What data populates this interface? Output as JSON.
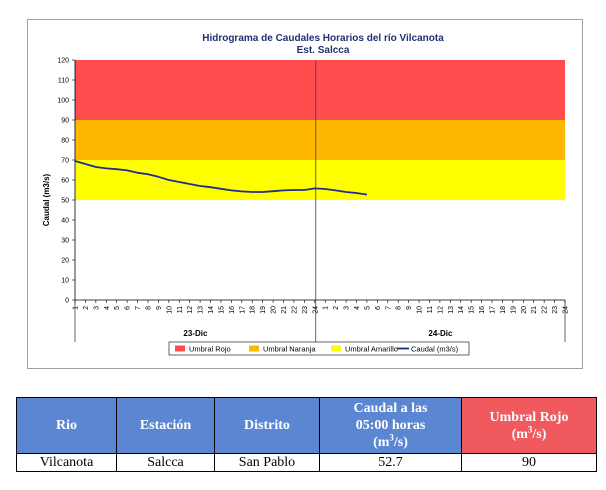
{
  "chart_data": {
    "type": "line",
    "title": "Hidrograma de Caudales Horarios del río Vilcanota",
    "subtitle": "Est. Salcca",
    "ylabel": "Caudal  (m3/s)",
    "ylim": [
      0,
      120
    ],
    "yticks": [
      0,
      10,
      20,
      30,
      40,
      50,
      60,
      70,
      80,
      90,
      100,
      110,
      120
    ],
    "x_tick_labels": [
      "1",
      "2",
      "3",
      "4",
      "5",
      "6",
      "7",
      "8",
      "9",
      "10",
      "11",
      "12",
      "13",
      "14",
      "15",
      "16",
      "17",
      "18",
      "19",
      "20",
      "21",
      "22",
      "23",
      "24",
      "1",
      "2",
      "3",
      "4",
      "5",
      "6",
      "7",
      "8",
      "9",
      "10",
      "11",
      "12",
      "13",
      "14",
      "15",
      "16",
      "17",
      "18",
      "19",
      "20",
      "21",
      "22",
      "23",
      "24"
    ],
    "day_labels": [
      "23-Dic",
      "24-Dic"
    ],
    "bands": [
      {
        "name": "Umbral Rojo",
        "from": 90,
        "to": 120,
        "color": "#FF4D4D"
      },
      {
        "name": "Umbral Naranja",
        "from": 70,
        "to": 90,
        "color": "#FFB800"
      },
      {
        "name": "Umbral Amarillo",
        "from": 50,
        "to": 70,
        "color": "#FFFF00"
      }
    ],
    "series": [
      {
        "name": "Caudal (m3/s)",
        "color": "#1F2C8F",
        "values": [
          69.5,
          68.0,
          66.5,
          65.8,
          65.4,
          64.8,
          63.6,
          62.9,
          61.6,
          60.0,
          59.0,
          58.0,
          57.0,
          56.4,
          55.6,
          54.8,
          54.3,
          54.0,
          54.0,
          54.4,
          54.8,
          55.0,
          55.0,
          55.8,
          55.5,
          54.8,
          54.0,
          53.5,
          52.7
        ]
      }
    ],
    "legend": {
      "position": "bottom",
      "entries": [
        "Umbral Rojo",
        "Umbral Naranja",
        "Umbral Amarillo",
        "Caudal (m3/s)"
      ]
    },
    "grid": false
  },
  "table": {
    "headers": {
      "rio": "Rio",
      "estacion": "Estación",
      "distrito": "Distrito",
      "caudal_line1": "Caudal a las",
      "caudal_line2": "05:00 horas",
      "caudal_unit_pre": "(m",
      "caudal_unit_sup": "3",
      "caudal_unit_post": "/s)",
      "umbral_line1": "Umbral Rojo",
      "umbral_unit_pre": "(m",
      "umbral_unit_sup": "3",
      "umbral_unit_post": "/s)"
    },
    "row": {
      "rio": "Vilcanota",
      "estacion": "Salcca",
      "distrito": "San Pablo",
      "caudal": "52.7",
      "umbral": "90"
    },
    "colors": {
      "header": "#5B86D2",
      "umbral_header": "#F05A5F"
    }
  }
}
